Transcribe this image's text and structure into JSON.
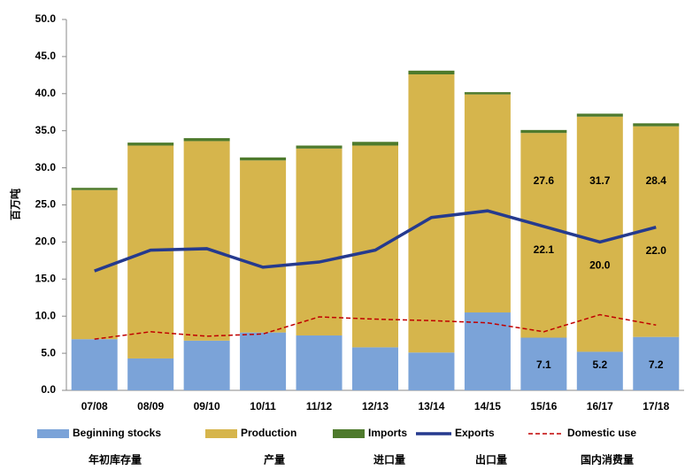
{
  "chart_data": {
    "type": "stacked_bar_line",
    "y_label": "百万吨",
    "categories": [
      "07/08",
      "08/09",
      "09/10",
      "10/11",
      "11/12",
      "12/13",
      "13/14",
      "14/15",
      "15/16",
      "16/17",
      "17/18"
    ],
    "ylim": [
      0,
      50
    ],
    "yticks": [
      {
        "value": 0,
        "label": "0.0"
      },
      {
        "value": 5,
        "label": "5.0"
      },
      {
        "value": 10,
        "label": "10.0"
      },
      {
        "value": 15,
        "label": "15.0"
      },
      {
        "value": 20,
        "label": "20.0"
      },
      {
        "value": 25,
        "label": "25.0"
      },
      {
        "value": 30,
        "label": "30.0"
      },
      {
        "value": 35,
        "label": "35.0"
      },
      {
        "value": 40,
        "label": "40.0"
      },
      {
        "value": 45,
        "label": "45.0"
      },
      {
        "value": 50,
        "label": "50.0"
      }
    ],
    "grid": false,
    "series": [
      {
        "name": "Beginning stocks",
        "kind": "bar",
        "color": "#7ba3d8",
        "values": [
          6.9,
          4.3,
          6.7,
          7.8,
          7.4,
          5.8,
          5.1,
          10.5,
          7.1,
          5.2,
          7.2
        ],
        "value_labels": [
          null,
          null,
          null,
          null,
          null,
          null,
          null,
          null,
          "7.1",
          "5.2",
          "7.2"
        ]
      },
      {
        "name": "Production",
        "kind": "bar",
        "color": "#d6b54c",
        "values": [
          20.1,
          28.7,
          26.9,
          23.2,
          25.2,
          27.2,
          37.5,
          29.4,
          27.6,
          31.7,
          28.4
        ],
        "value_labels": [
          null,
          null,
          null,
          null,
          null,
          null,
          null,
          null,
          "27.6",
          "31.7",
          "28.4"
        ]
      },
      {
        "name": "Imports",
        "kind": "bar",
        "color": "#4e7a2c",
        "values": [
          0.3,
          0.4,
          0.4,
          0.4,
          0.4,
          0.5,
          0.5,
          0.3,
          0.4,
          0.4,
          0.4
        ]
      },
      {
        "name": "Exports",
        "kind": "line",
        "color": "#253a8e",
        "values": [
          16.1,
          18.9,
          19.1,
          16.6,
          17.3,
          18.9,
          23.3,
          24.2,
          22.1,
          20.0,
          22.0
        ],
        "value_labels": [
          null,
          null,
          null,
          null,
          null,
          null,
          null,
          null,
          "22.1",
          "20.0",
          "22.0"
        ]
      },
      {
        "name": "Domestic use",
        "kind": "dashed_line",
        "color": "#c00000",
        "values": [
          6.9,
          7.9,
          7.3,
          7.6,
          9.9,
          9.6,
          9.4,
          9.1,
          7.9,
          10.2,
          8.8
        ]
      }
    ],
    "legend_subtitles": [
      "年初库存量",
      "产量",
      "进口量",
      "出口量",
      "国内消费量"
    ]
  }
}
